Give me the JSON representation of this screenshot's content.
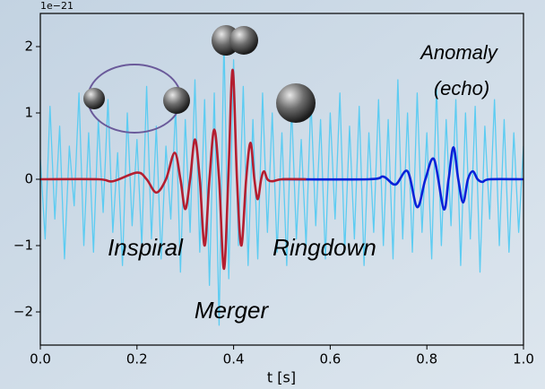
{
  "chart_data": {
    "type": "line",
    "y_offset_label": "1e−21",
    "xlabel": "t [s]",
    "annotations": [
      "Anomaly",
      "(echo)",
      "Inspiral",
      "Merger",
      "Ringdown"
    ],
    "xlim": [
      0,
      1
    ],
    "ylim": [
      -2.5,
      2.5
    ],
    "xticks": [
      {
        "value": 0,
        "label": "0.0"
      },
      {
        "value": 0.2,
        "label": "0.2"
      },
      {
        "value": 0.4,
        "label": "0.4"
      },
      {
        "value": 0.6,
        "label": "0.6"
      },
      {
        "value": 0.8,
        "label": "0.8"
      },
      {
        "value": 1,
        "label": "1.0"
      }
    ],
    "yticks": [
      {
        "value": -2,
        "label": "−2"
      },
      {
        "value": -1,
        "label": "−1"
      },
      0,
      1,
      2
    ],
    "series": [
      {
        "color": "#5cccf2",
        "x": [
          0,
          0.01,
          0.02,
          0.03,
          0.04,
          0.05,
          0.06,
          0.07,
          0.08,
          0.09,
          0.1,
          0.11,
          0.12,
          0.13,
          0.14,
          0.15,
          0.16,
          0.17,
          0.18,
          0.19,
          0.2,
          0.21,
          0.22,
          0.23,
          0.24,
          0.25,
          0.26,
          0.27,
          0.28,
          0.29,
          0.3,
          0.31,
          0.32,
          0.33,
          0.34,
          0.35,
          0.36,
          0.37,
          0.38,
          0.39,
          0.4,
          0.41,
          0.42,
          0.43,
          0.44,
          0.45,
          0.46,
          0.47,
          0.48,
          0.49,
          0.5,
          0.51,
          0.52,
          0.53,
          0.54,
          0.55,
          0.56,
          0.57,
          0.58,
          0.59,
          0.6,
          0.61,
          0.62,
          0.63,
          0.64,
          0.65,
          0.66,
          0.67,
          0.68,
          0.69,
          0.7,
          0.71,
          0.72,
          0.73,
          0.74,
          0.75,
          0.76,
          0.77,
          0.78,
          0.79,
          0.8,
          0.81,
          0.82,
          0.83,
          0.84,
          0.85,
          0.86,
          0.87,
          0.88,
          0.89,
          0.9,
          0.91,
          0.92,
          0.93,
          0.94,
          0.95,
          0.96,
          0.97,
          0.98,
          0.99,
          1
        ],
        "values": [
          0.3,
          -0.9,
          1.1,
          -0.6,
          0.8,
          -1.2,
          0.5,
          -0.4,
          1.3,
          -1.0,
          0.7,
          -1.1,
          0.9,
          -0.5,
          1.2,
          -0.8,
          0.4,
          -1.3,
          1.0,
          -0.7,
          0.6,
          -1.0,
          1.4,
          -0.9,
          0.8,
          -1.2,
          0.5,
          -0.6,
          1.1,
          -1.4,
          0.9,
          -0.8,
          1.5,
          -1.1,
          1.2,
          -1.6,
          1.3,
          -2.2,
          2.1,
          -1.5,
          1.8,
          -1.0,
          1.4,
          -1.3,
          0.9,
          -1.2,
          1.3,
          -0.8,
          1.0,
          -1.1,
          0.7,
          -1.3,
          1.1,
          -0.9,
          0.6,
          -1.0,
          1.2,
          -0.7,
          0.9,
          -1.2,
          1.0,
          -0.6,
          1.3,
          -1.1,
          0.8,
          -0.9,
          1.1,
          -1.3,
          0.7,
          -0.8,
          1.2,
          -1.0,
          0.9,
          -1.2,
          1.5,
          -0.9,
          1.0,
          -1.1,
          1.3,
          -0.8,
          0.7,
          -1.2,
          1.4,
          -1.0,
          0.9,
          -0.7,
          1.2,
          -1.3,
          1.0,
          -0.9,
          1.1,
          -1.4,
          0.8,
          -0.6,
          1.2,
          -1.0,
          0.9,
          -1.1,
          0.7,
          -0.8,
          0.5
        ]
      },
      {
        "color": "#0a22d8",
        "x": [
          0.5,
          0.68,
          0.71,
          0.735,
          0.76,
          0.78,
          0.797,
          0.815,
          0.835,
          0.845,
          0.855,
          0.865,
          0.875,
          0.885,
          0.895,
          0.905,
          0.915,
          0.93,
          1.0
        ],
        "values": [
          0,
          0,
          0.04,
          -0.08,
          0.12,
          -0.42,
          0,
          0.3,
          -0.45,
          0,
          0.48,
          0,
          -0.35,
          0,
          0.12,
          0,
          -0.04,
          0,
          0
        ]
      },
      {
        "color": "#b41e30",
        "x": [
          0,
          0.12,
          0.15,
          0.2,
          0.22,
          0.24,
          0.26,
          0.278,
          0.29,
          0.3,
          0.31,
          0.32,
          0.33,
          0.34,
          0.35,
          0.36,
          0.37,
          0.38,
          0.389,
          0.398,
          0.407,
          0.416,
          0.426,
          0.435,
          0.443,
          0.45,
          0.457,
          0.463,
          0.47,
          0.48,
          0.5,
          0.55
        ],
        "values": [
          0,
          0,
          -0.03,
          0.1,
          0,
          -0.2,
          0,
          0.4,
          0,
          -0.45,
          0,
          0.6,
          0,
          -1.0,
          0,
          0.75,
          0,
          -1.35,
          0,
          1.65,
          0,
          -1.0,
          0,
          0.55,
          0,
          -0.3,
          0,
          0.12,
          0,
          -0.03,
          0,
          0
        ]
      }
    ]
  }
}
